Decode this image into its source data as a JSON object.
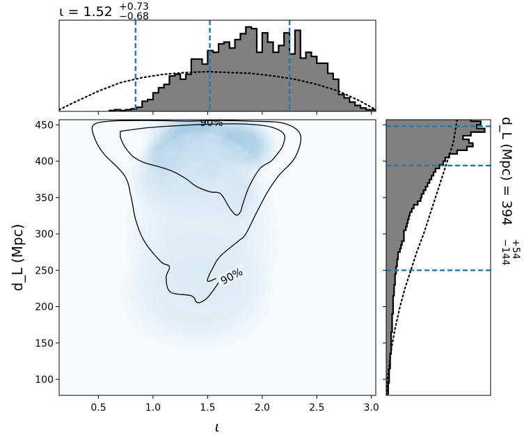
{
  "chart_data": [
    {
      "type": "histogram",
      "panel": "marginal-iota",
      "title": {
        "symbol": "ι",
        "eq": " = ",
        "median": "1.52",
        "upper": "+0.73",
        "lower": "−0.68"
      },
      "xlim": [
        0.14,
        3.04
      ],
      "ylim": [
        0,
        1.08
      ],
      "quantile_lines": [
        0.84,
        1.52,
        2.25
      ],
      "quantile_color": "#1f77b4",
      "bar_color": "#808080",
      "posterior_bins": {
        "start": 0.6,
        "width": 0.05,
        "heights": [
          0.01,
          0.02,
          0.01,
          0.02,
          0.03,
          0.05,
          0.12,
          0.14,
          0.22,
          0.28,
          0.32,
          0.42,
          0.44,
          0.38,
          0.44,
          0.62,
          0.62,
          0.56,
          0.72,
          0.7,
          0.8,
          0.82,
          0.75,
          0.85,
          0.92,
          1.0,
          0.98,
          0.7,
          0.93,
          0.82,
          0.7,
          0.78,
          0.93,
          0.68,
          0.96,
          0.63,
          0.7,
          0.65,
          0.57,
          0.57,
          0.45,
          0.38,
          0.2,
          0.16,
          0.11,
          0.07,
          0.04,
          0.02,
          0.02,
          0.01
        ]
      },
      "prior_dotted": {
        "x": [
          0.14,
          0.3,
          0.5,
          0.7,
          0.9,
          1.1,
          1.3,
          1.5,
          1.7,
          1.9,
          2.1,
          2.3,
          2.5,
          2.7,
          2.9,
          3.04
        ],
        "y": [
          0.02,
          0.12,
          0.24,
          0.34,
          0.4,
          0.44,
          0.46,
          0.47,
          0.46,
          0.45,
          0.42,
          0.38,
          0.32,
          0.24,
          0.12,
          0.02
        ]
      }
    },
    {
      "type": "heatmap",
      "panel": "joint-density",
      "xlabel": "ι",
      "ylabel": "d_L (Mpc)",
      "xlim": [
        0.14,
        3.04
      ],
      "ylim": [
        78,
        457
      ],
      "xticks": [
        0.5,
        1.0,
        1.5,
        2.0,
        2.5,
        3.0
      ],
      "xtick_labels": [
        "0.5",
        "1.0",
        "1.5",
        "2.0",
        "2.5",
        "3.0"
      ],
      "yticks": [
        100,
        150,
        200,
        250,
        300,
        350,
        400,
        450
      ],
      "ytick_labels": [
        "100",
        "150",
        "200",
        "250",
        "300",
        "350",
        "400",
        "450"
      ],
      "colormap": "Blues",
      "contour_labels": [
        "90%",
        "90%"
      ],
      "density_peaks": [
        {
          "x": 1.15,
          "y": 408,
          "w": 0.12,
          "h": 16,
          "a": 0.9
        },
        {
          "x": 1.58,
          "y": 397,
          "w": 0.13,
          "h": 18,
          "a": 1.0
        },
        {
          "x": 1.45,
          "y": 432,
          "w": 0.28,
          "h": 22,
          "a": 0.75
        },
        {
          "x": 1.8,
          "y": 420,
          "w": 0.18,
          "h": 22,
          "a": 0.6
        },
        {
          "x": 1.35,
          "y": 380,
          "w": 0.3,
          "h": 30,
          "a": 0.45
        },
        {
          "x": 1.75,
          "y": 355,
          "w": 0.12,
          "h": 22,
          "a": 0.35
        },
        {
          "x": 1.45,
          "y": 300,
          "w": 0.35,
          "h": 70,
          "a": 0.12
        },
        {
          "x": 1.4,
          "y": 220,
          "w": 0.35,
          "h": 40,
          "a": 0.05
        }
      ],
      "outer_contour_90": {
        "x": [
          1.32,
          1.6,
          1.9,
          2.2,
          2.35,
          2.3,
          2.15,
          2.05,
          1.95,
          1.85,
          1.78,
          1.62,
          1.55,
          1.5,
          1.62,
          1.52,
          1.45,
          1.4,
          1.35,
          1.16,
          1.12,
          1.15,
          1.07,
          0.92,
          0.84,
          0.8,
          0.74,
          0.55,
          0.47,
          0.45,
          0.6,
          0.95,
          1.32
        ],
        "y": [
          455,
          456,
          455,
          452,
          436,
          405,
          380,
          358,
          330,
          300,
          290,
          270,
          254,
          235,
          240,
          216,
          207,
          206,
          215,
          220,
          240,
          255,
          262,
          290,
          320,
          350,
          380,
          410,
          430,
          449,
          455,
          456,
          455
        ]
      },
      "inner_contour": {
        "x": [
          0.7,
          0.95,
          1.25,
          1.55,
          1.85,
          2.08,
          2.2,
          2.19,
          2.15,
          2.08,
          1.98,
          1.88,
          1.82,
          1.8,
          1.76,
          1.7,
          1.62,
          1.52,
          1.4,
          1.3,
          1.18,
          1.04,
          0.92,
          0.82,
          0.74,
          0.7
        ],
        "y": [
          441,
          446,
          449,
          451,
          451,
          447,
          437,
          422,
          412,
          400,
          390,
          365,
          340,
          330,
          326,
          336,
          355,
          358,
          365,
          376,
          386,
          393,
          398,
          406,
          420,
          433
        ]
      }
    },
    {
      "type": "histogram",
      "panel": "marginal-distance",
      "label": {
        "symbol": "d_L",
        "unit": " (Mpc) = ",
        "median": "394",
        "upper": "+54",
        "lower": "−144"
      },
      "ylim": [
        78,
        457
      ],
      "xlim": [
        0,
        1.06
      ],
      "quantile_lines": [
        250,
        394,
        448
      ],
      "posterior_bins": {
        "start": 80,
        "width": 5,
        "heights": [
          0.02,
          0.02,
          0.02,
          0.03,
          0.03,
          0.03,
          0.03,
          0.04,
          0.04,
          0.04,
          0.04,
          0.05,
          0.05,
          0.05,
          0.05,
          0.05,
          0.05,
          0.06,
          0.06,
          0.06,
          0.06,
          0.06,
          0.07,
          0.07,
          0.07,
          0.07,
          0.07,
          0.08,
          0.08,
          0.08,
          0.09,
          0.09,
          0.09,
          0.1,
          0.1,
          0.11,
          0.11,
          0.12,
          0.12,
          0.14,
          0.15,
          0.16,
          0.18,
          0.18,
          0.18,
          0.2,
          0.21,
          0.22,
          0.23,
          0.24,
          0.26,
          0.28,
          0.32,
          0.35,
          0.36,
          0.38,
          0.4,
          0.42,
          0.44,
          0.46,
          0.48,
          0.5,
          0.54,
          0.58,
          0.6,
          0.64,
          0.72,
          0.82,
          0.88,
          0.84,
          0.78,
          0.86,
          1.0,
          0.92,
          0.96,
          0.86,
          0.88
        ]
      },
      "prior_dotted": {
        "x": [
          0.0,
          0.02,
          0.05,
          0.09,
          0.14,
          0.19,
          0.25,
          0.31,
          0.38,
          0.44,
          0.5,
          0.56,
          0.62,
          0.68,
          0.72
        ],
        "y": [
          78,
          110,
          140,
          170,
          200,
          225,
          250,
          275,
          300,
          325,
          350,
          375,
          400,
          425,
          457
        ]
      }
    }
  ]
}
